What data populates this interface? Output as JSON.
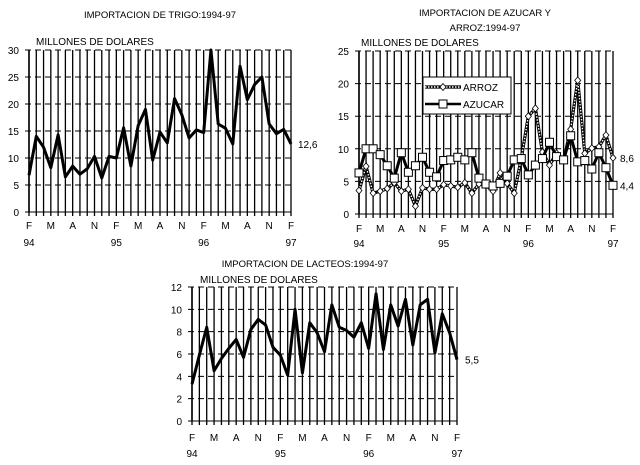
{
  "chart_data": [
    {
      "type": "line",
      "title": "IMPORTACION DE TRIGO:1994-97",
      "ylabel": "MILLONES DE DOLARES",
      "ylim": [
        0,
        30
      ],
      "yticks": [
        0,
        5,
        10,
        15,
        20,
        25,
        30
      ],
      "month_labels": [
        "F",
        "M",
        "A",
        "N",
        "F",
        "M",
        "A",
        "N",
        "F",
        "M",
        "A",
        "N",
        "F"
      ],
      "year_labels": [
        "94",
        "95",
        "96",
        "97"
      ],
      "grid": true,
      "series": [
        {
          "name": "TRIGO",
          "end_label": "12,6",
          "marker": "none",
          "values": [
            6.8,
            14,
            12,
            8.2,
            14.3,
            6.5,
            8.5,
            7,
            8,
            10.3,
            6.3,
            10.3,
            10,
            15.6,
            8.5,
            16,
            19,
            9.6,
            14.8,
            12.8,
            21,
            18,
            13.7,
            15.2,
            14.7,
            30,
            16.3,
            15.5,
            12.6,
            27,
            20.8,
            23.6,
            25,
            16.3,
            14.5,
            15.3,
            12.6
          ]
        }
      ]
    },
    {
      "type": "line",
      "title": "IMPORTACION DE AZUCAR Y",
      "title2": "ARROZ:1994-97",
      "ylabel": "MILLONES DE DOLARES",
      "ylim": [
        0,
        25
      ],
      "yticks": [
        0,
        5,
        10,
        15,
        20,
        25
      ],
      "month_labels": [
        "F",
        "M",
        "A",
        "N",
        "F",
        "M",
        "A",
        "N",
        "F",
        "M",
        "A",
        "N",
        "F"
      ],
      "year_labels": [
        "94",
        "95",
        "96",
        "97"
      ],
      "grid": true,
      "legend": "top-center",
      "series": [
        {
          "name": "ARROZ",
          "end_label": "8,6",
          "marker": "diamond",
          "values": [
            3.6,
            7.3,
            3.2,
            3.5,
            3.9,
            4.8,
            3.5,
            3.8,
            1.2,
            4.0,
            3.8,
            3.8,
            4.5,
            4.3,
            4.1,
            4.8,
            3.2,
            4.6,
            4.4,
            3.5,
            6.3,
            4.7,
            3.2,
            8.5,
            15,
            16.2,
            9.5,
            7.5,
            9.3,
            8.2,
            13,
            20.5,
            9.3,
            10.1,
            10.3,
            12.1,
            8.6
          ]
        },
        {
          "name": "AZUCAR",
          "end_label": "4,4",
          "marker": "square",
          "values": [
            6.3,
            10,
            10,
            9.1,
            7.4,
            5.5,
            9.4,
            6.4,
            7.4,
            8.7,
            6.4,
            5.7,
            8.2,
            8.3,
            8.7,
            8.3,
            9.4,
            5.5,
            4.6,
            4.3,
            4.7,
            5.8,
            8.3,
            8.5,
            6.0,
            7.5,
            8.5,
            11,
            8.8,
            8.3,
            12,
            8.0,
            8.2,
            6.9,
            9.4,
            7.1,
            4.4
          ]
        }
      ]
    },
    {
      "type": "line",
      "title": "IMPORTACION DE LACTEOS:1994-97",
      "ylabel": "MILLONES DE DOLARES",
      "ylim": [
        0,
        12
      ],
      "yticks": [
        0,
        2,
        4,
        6,
        8,
        10,
        12
      ],
      "month_labels": [
        "F",
        "M",
        "A",
        "N",
        "F",
        "M",
        "A",
        "N",
        "F",
        "M",
        "A",
        "N",
        "F"
      ],
      "year_labels": [
        "94",
        "95",
        "96",
        "97"
      ],
      "grid": true,
      "series": [
        {
          "name": "LACTEOS",
          "end_label": "5,5",
          "marker": "none",
          "values": [
            3.3,
            5.9,
            8.4,
            4.5,
            5.6,
            6.5,
            7.3,
            5.7,
            8.2,
            9.1,
            8.6,
            6.6,
            5.9,
            4.1,
            10,
            4.3,
            8.8,
            7.9,
            6.2,
            10.4,
            8.4,
            8.1,
            7.5,
            8.8,
            6.5,
            11.4,
            6.4,
            10.4,
            8.5,
            10.9,
            6.8,
            10.4,
            10.9,
            6.1,
            9.6,
            7.9,
            5.5
          ]
        }
      ]
    }
  ]
}
